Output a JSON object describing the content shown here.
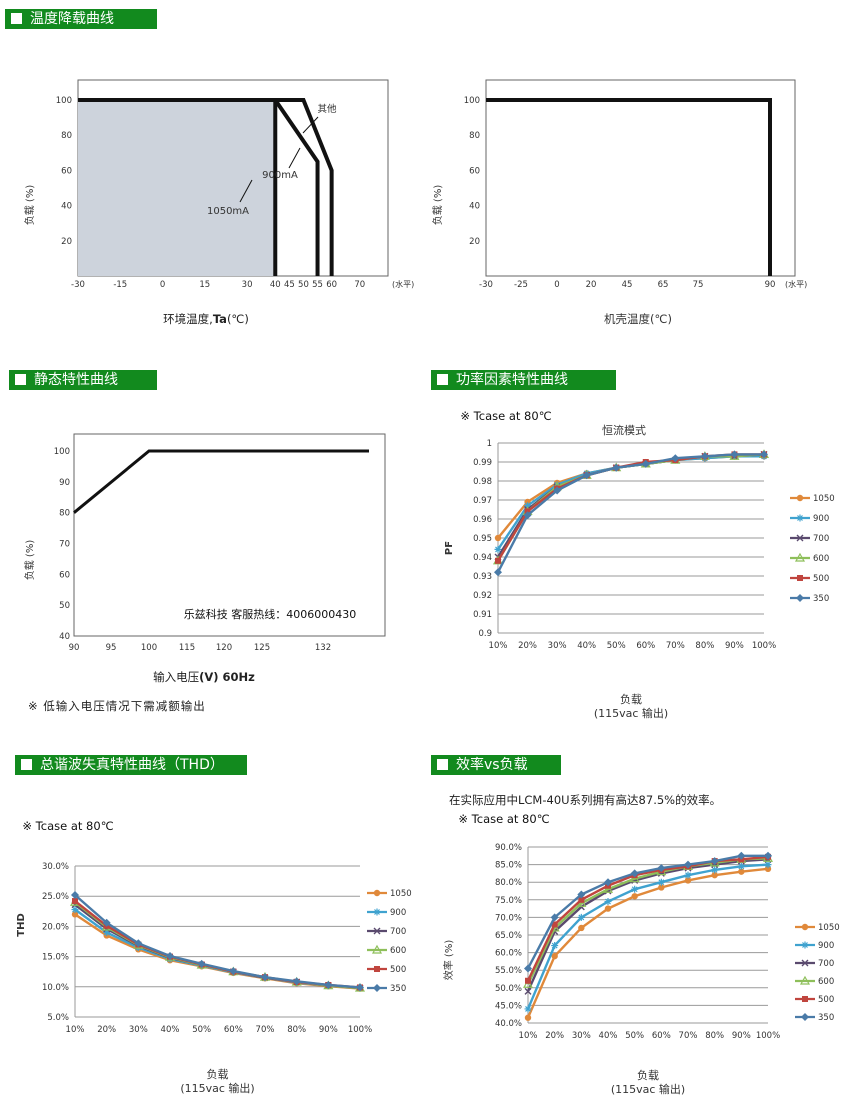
{
  "headers": {
    "derating": "温度降载曲线",
    "static": "静态特性曲线",
    "pf": "功率因素特性曲线",
    "thd": "总谐波失真特性曲线（THD）",
    "eff": "效率vs负载"
  },
  "notes": {
    "low_input": "※ 低输入电压情况下需减额输出",
    "hotline": "乐兹科技 客服热线：4006000430",
    "eff_note": "在实际应用中LCM-40U系列拥有高达87.5%的效率。"
  },
  "colors": {
    "header": "#128a1e",
    "s1050": "#e0893a",
    "s900": "#3fa2cf",
    "s700": "#5a4a6e",
    "s600": "#8ebf5a",
    "s500": "#c0453e",
    "s350": "#4a7ba8"
  },
  "chart_data": [
    {
      "id": "derating1",
      "type": "line",
      "xlabel_main": "环境温度,",
      "xlabel_bold": "Ta",
      "xlabel_unit": "(℃)",
      "ylabel": "负载 (%)",
      "x_ticks": [
        "-30",
        "-15",
        "0",
        "15",
        "30",
        "40",
        "45",
        "50",
        "55",
        "60",
        "70"
      ],
      "x_unit": "(水平)",
      "y_ticks": [
        "20",
        "40",
        "60",
        "80",
        "100"
      ],
      "ylim": [
        0,
        100
      ],
      "xlim": [
        -30,
        80
      ],
      "shaded_region": {
        "x": [
          -30,
          40
        ],
        "y": [
          0,
          100
        ]
      },
      "series": [
        {
          "name": "1050mA",
          "x": [
            -30,
            40,
            40
          ],
          "y": [
            100,
            100,
            0
          ]
        },
        {
          "name": "900mA",
          "x": [
            -30,
            40,
            55,
            55
          ],
          "y": [
            100,
            100,
            65,
            0
          ]
        },
        {
          "name": "其他",
          "x": [
            -30,
            50,
            60,
            60
          ],
          "y": [
            100,
            100,
            60,
            0
          ]
        }
      ]
    },
    {
      "id": "derating2",
      "type": "line",
      "xlabel": "机壳温度(℃)",
      "ylabel": "负载 (%)",
      "x_ticks": [
        "-30",
        "-25",
        "0",
        "20",
        "45",
        "65",
        "75",
        "90"
      ],
      "x_unit": "(水平)",
      "y_ticks": [
        "20",
        "40",
        "60",
        "80",
        "100"
      ],
      "ylim": [
        0,
        100
      ],
      "series": [
        {
          "name": "",
          "x": [
            -30,
            90,
            90
          ],
          "y": [
            100,
            100,
            0
          ]
        }
      ]
    },
    {
      "id": "static",
      "type": "line",
      "xlabel_main": "输入电压",
      "xlabel_bold": "(V) 60Hz",
      "ylabel": "负载 (%)",
      "x_ticks": [
        "90",
        "95",
        "100",
        "115",
        "120",
        "125",
        "132"
      ],
      "y_ticks": [
        "40",
        "50",
        "60",
        "70",
        "80",
        "90",
        "100"
      ],
      "ylim": [
        40,
        100
      ],
      "series": [
        {
          "name": "",
          "x": [
            90,
            100,
            132
          ],
          "y": [
            80,
            100,
            100
          ]
        }
      ]
    },
    {
      "id": "pf",
      "type": "line",
      "title": "恒流模式",
      "annotation": "※ Tcase at 80℃",
      "xlabel": "负载",
      "xlabel2": "(115vac 输出)",
      "ylabel": "PF",
      "categories": [
        "10%",
        "20%",
        "30%",
        "40%",
        "50%",
        "60%",
        "70%",
        "80%",
        "90%",
        "100%"
      ],
      "y_ticks": [
        "0.9",
        "0.91",
        "0.92",
        "0.93",
        "0.94",
        "0.95",
        "0.96",
        "0.97",
        "0.98",
        "0.99",
        "1"
      ],
      "ylim": [
        0.9,
        1.0
      ],
      "series": [
        {
          "name": "1050",
          "values": [
            0.95,
            0.969,
            0.979,
            0.984,
            0.987,
            0.989,
            0.991,
            0.992,
            0.993,
            0.993
          ]
        },
        {
          "name": "900",
          "values": [
            0.944,
            0.967,
            0.978,
            0.984,
            0.987,
            0.989,
            0.991,
            0.992,
            0.993,
            0.993
          ]
        },
        {
          "name": "700",
          "values": [
            0.94,
            0.965,
            0.977,
            0.983,
            0.987,
            0.989,
            0.991,
            0.993,
            0.993,
            0.994
          ]
        },
        {
          "name": "600",
          "values": [
            0.938,
            0.964,
            0.977,
            0.983,
            0.987,
            0.989,
            0.991,
            0.993,
            0.993,
            0.994
          ]
        },
        {
          "name": "500",
          "values": [
            0.938,
            0.964,
            0.976,
            0.983,
            0.987,
            0.99,
            0.991,
            0.993,
            0.994,
            0.994
          ]
        },
        {
          "name": "350",
          "values": [
            0.932,
            0.962,
            0.975,
            0.983,
            0.987,
            0.989,
            0.992,
            0.993,
            0.994,
            0.994
          ]
        }
      ],
      "legend": "right"
    },
    {
      "id": "thd",
      "type": "line",
      "annotation": "※ Tcase at 80℃",
      "xlabel": "负载",
      "xlabel2": "(115vac 输出)",
      "ylabel": "THD",
      "categories": [
        "10%",
        "20%",
        "30%",
        "40%",
        "50%",
        "60%",
        "70%",
        "80%",
        "90%",
        "100%"
      ],
      "y_ticks": [
        "5.0%",
        "10.0%",
        "15.0%",
        "20.0%",
        "25.0%",
        "30.0%"
      ],
      "ylim": [
        5,
        30
      ],
      "series": [
        {
          "name": "1050",
          "values": [
            22.0,
            18.5,
            16.2,
            14.4,
            13.4,
            12.3,
            11.4,
            10.6,
            10.1,
            9.7
          ]
        },
        {
          "name": "900",
          "values": [
            22.8,
            19.0,
            16.5,
            14.6,
            13.5,
            12.4,
            11.5,
            10.7,
            10.2,
            9.8
          ]
        },
        {
          "name": "700",
          "values": [
            23.6,
            19.6,
            16.8,
            14.8,
            13.6,
            12.5,
            11.5,
            10.8,
            10.2,
            9.8
          ]
        },
        {
          "name": "600",
          "values": [
            24.0,
            19.9,
            16.9,
            14.9,
            13.6,
            12.5,
            11.6,
            10.8,
            10.2,
            9.8
          ]
        },
        {
          "name": "500",
          "values": [
            24.2,
            20.1,
            17.0,
            15.0,
            13.7,
            12.5,
            11.6,
            10.8,
            10.3,
            9.9
          ]
        },
        {
          "name": "350",
          "values": [
            25.2,
            20.6,
            17.2,
            15.1,
            13.8,
            12.6,
            11.6,
            10.9,
            10.3,
            9.9
          ]
        }
      ],
      "legend": "right"
    },
    {
      "id": "eff",
      "type": "line",
      "annotation": "※ Tcase at 80℃",
      "xlabel": "负载",
      "xlabel2": "(115vac 输出)",
      "ylabel": "效率 (%)",
      "categories": [
        "10%",
        "20%",
        "30%",
        "40%",
        "50%",
        "60%",
        "70%",
        "80%",
        "90%",
        "100%"
      ],
      "y_ticks": [
        "40.0%",
        "45.0%",
        "50.0%",
        "55.0%",
        "60.0%",
        "65.0%",
        "70.0%",
        "75.0%",
        "80.0%",
        "85.0%",
        "90.0%"
      ],
      "ylim": [
        40,
        90
      ],
      "series": [
        {
          "name": "1050",
          "values": [
            41.5,
            59.0,
            67.0,
            72.5,
            76.0,
            78.5,
            80.5,
            82.0,
            83.0,
            83.8
          ]
        },
        {
          "name": "900",
          "values": [
            44.0,
            62.0,
            70.0,
            74.5,
            78.0,
            80.0,
            82.0,
            83.5,
            84.5,
            85.0
          ]
        },
        {
          "name": "700",
          "values": [
            49.0,
            66.0,
            73.0,
            77.5,
            80.5,
            82.5,
            84.0,
            85.0,
            86.0,
            86.5
          ]
        },
        {
          "name": "600",
          "values": [
            51.0,
            67.0,
            74.0,
            78.0,
            81.0,
            83.0,
            84.5,
            85.5,
            86.5,
            86.8
          ]
        },
        {
          "name": "500",
          "values": [
            52.0,
            68.0,
            75.0,
            79.0,
            82.0,
            83.5,
            84.5,
            86.0,
            86.5,
            87.2
          ]
        },
        {
          "name": "350",
          "values": [
            55.5,
            70.0,
            76.5,
            80.0,
            82.5,
            84.0,
            85.0,
            86.0,
            87.5,
            87.5
          ]
        }
      ],
      "legend": "right"
    }
  ]
}
